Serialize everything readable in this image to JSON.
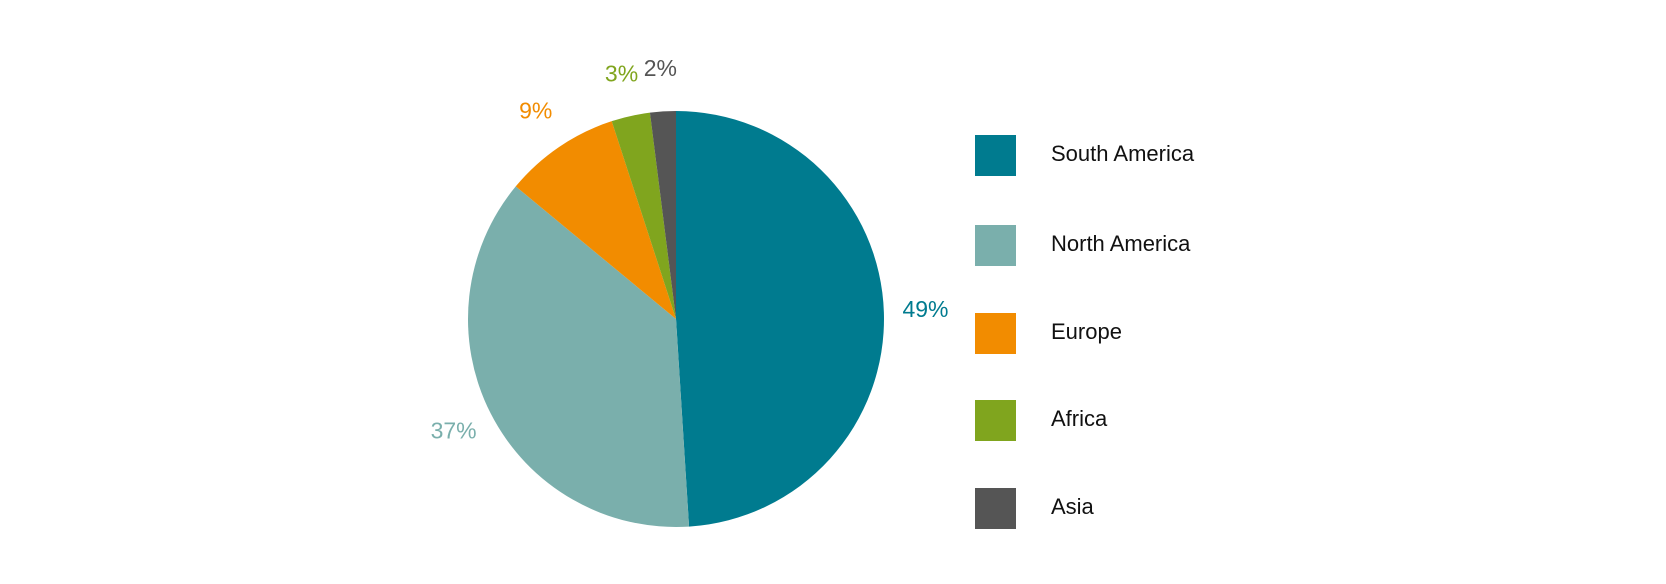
{
  "chart_data": {
    "type": "pie",
    "categories": [
      "South America",
      "North America",
      "Europe",
      "Africa",
      "Asia"
    ],
    "values": [
      49,
      37,
      9,
      3,
      2
    ],
    "value_labels": [
      "49%",
      "37%",
      "9%",
      "3%",
      "2%"
    ],
    "colors": [
      "#007b8f",
      "#7aafac",
      "#f28c00",
      "#80a51e",
      "#555555"
    ],
    "legend": "right"
  }
}
